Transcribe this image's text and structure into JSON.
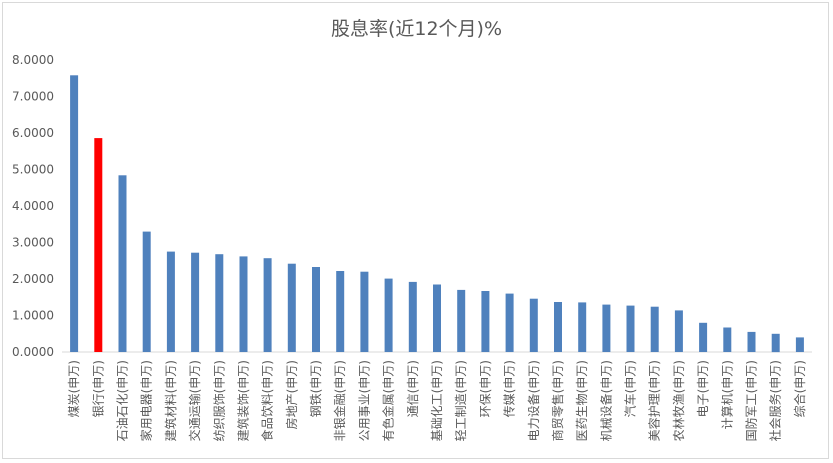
{
  "chart_data": {
    "type": "bar",
    "title": "股息率(近12个月)%",
    "xlabel": "",
    "ylabel": "",
    "ylim": [
      0,
      8
    ],
    "yticks": [
      "0.0000",
      "1.0000",
      "2.0000",
      "3.0000",
      "4.0000",
      "5.0000",
      "6.0000",
      "7.0000",
      "8.0000"
    ],
    "grid": false,
    "legend": "none",
    "bar_color": "#4f81bd",
    "highlight_color": "#ff0000",
    "highlight_index": 1,
    "categories": [
      "煤炭(申万)",
      "银行(申万)",
      "石油石化(申万)",
      "家用电器(申万)",
      "建筑材料(申万)",
      "交通运输(申万)",
      "纺织服饰(申万)",
      "建筑装饰(申万)",
      "食品饮料(申万)",
      "房地产(申万)",
      "钢铁(申万)",
      "非银金融(申万)",
      "公用事业(申万)",
      "有色金属(申万)",
      "通信(申万)",
      "基础化工(申万)",
      "轻工制造(申万)",
      "环保(申万)",
      "传媒(申万)",
      "电力设备(申万)",
      "商贸零售(申万)",
      "医药生物(申万)",
      "机械设备(申万)",
      "汽车(申万)",
      "美容护理(申万)",
      "农林牧渔(申万)",
      "电子(申万)",
      "计算机(申万)",
      "国防军工(申万)",
      "社会服务(申万)",
      "综合(申万)"
    ],
    "values": [
      7.58,
      5.86,
      4.84,
      3.3,
      2.75,
      2.72,
      2.68,
      2.62,
      2.57,
      2.42,
      2.33,
      2.22,
      2.2,
      2.01,
      1.92,
      1.85,
      1.7,
      1.67,
      1.6,
      1.46,
      1.37,
      1.36,
      1.3,
      1.27,
      1.24,
      1.14,
      0.8,
      0.67,
      0.55,
      0.5,
      0.4
    ]
  }
}
